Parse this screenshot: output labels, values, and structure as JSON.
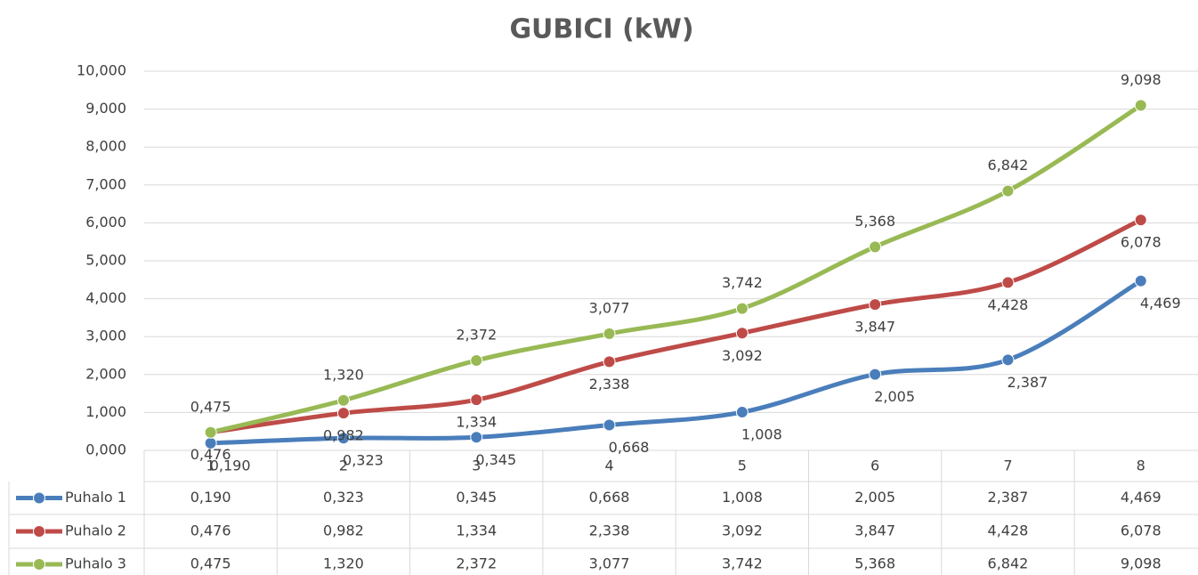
{
  "chart_data": {
    "type": "line",
    "title": "GUBICI (kW)",
    "categories": [
      "1",
      "2",
      "3",
      "4",
      "5",
      "6",
      "7",
      "8"
    ],
    "series": [
      {
        "name": "Puhalo 1",
        "color": "#4a7ebb",
        "values": [
          0.19,
          0.323,
          0.345,
          0.668,
          1.008,
          2.005,
          2.387,
          4.469
        ],
        "value_labels": [
          "0,190",
          "0,323",
          "0,345",
          "0,668",
          "1,008",
          "2,005",
          "2,387",
          "4,469"
        ]
      },
      {
        "name": "Puhalo 2",
        "color": "#be4b48",
        "values": [
          0.476,
          0.982,
          1.334,
          2.338,
          3.092,
          3.847,
          4.428,
          6.078
        ],
        "value_labels": [
          "0,476",
          "0,982",
          "1,334",
          "2,338",
          "3,092",
          "3,847",
          "4,428",
          "6,078"
        ]
      },
      {
        "name": "Puhalo 3",
        "color": "#98b954",
        "values": [
          0.475,
          1.32,
          2.372,
          3.077,
          3.742,
          5.368,
          6.842,
          9.098
        ],
        "value_labels": [
          "0,475",
          "1,320",
          "2,372",
          "3,077",
          "3,742",
          "5,368",
          "6,842",
          "9,098"
        ]
      }
    ],
    "ylim": [
      0,
      10
    ],
    "yticks": [
      {
        "value": 0,
        "label": "0,000"
      },
      {
        "value": 1,
        "label": "1,000"
      },
      {
        "value": 2,
        "label": "2,000"
      },
      {
        "value": 3,
        "label": "3,000"
      },
      {
        "value": 4,
        "label": "4,000"
      },
      {
        "value": 5,
        "label": "5,000"
      },
      {
        "value": 6,
        "label": "6,000"
      },
      {
        "value": 7,
        "label": "7,000"
      },
      {
        "value": 8,
        "label": "8,000"
      },
      {
        "value": 9,
        "label": "9,000"
      },
      {
        "value": 10,
        "label": "10,000"
      }
    ],
    "grid": true
  }
}
